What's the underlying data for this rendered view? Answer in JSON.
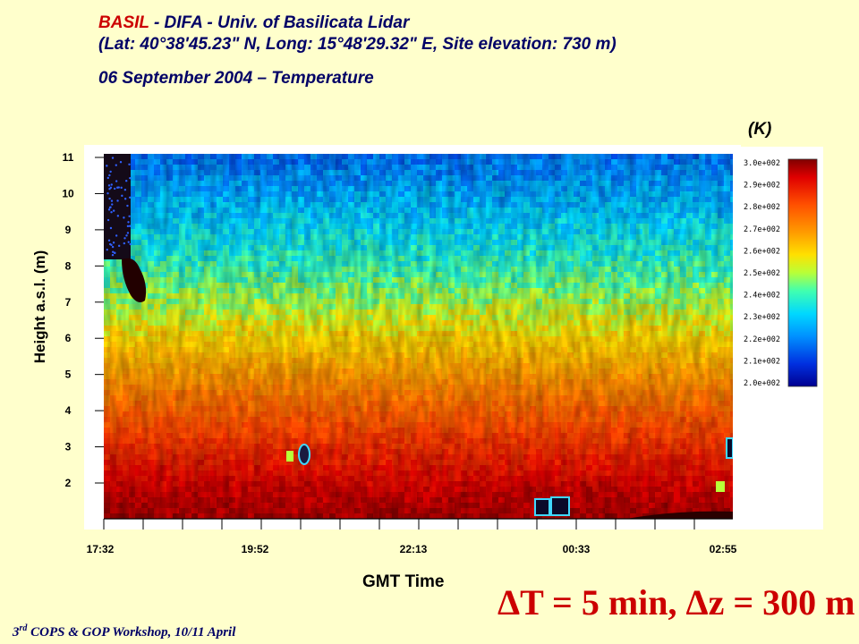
{
  "header": {
    "name_highlight": "BASIL",
    "name_rest": " - DIFA - Univ. of Basilicata Lidar",
    "coords": "(Lat: 40°38'45.23\" N, Long: 15°48'29.32\" E, Site elevation: 730 m)",
    "date": "06 September 2004 – Temperature"
  },
  "footer": {
    "ordinal": "3",
    "ordinal_sup": "rd",
    "text": " COPS & GOP Workshop, 10/11 April"
  },
  "resolution_note": "ΔT = 5 min, Δz = 300 m",
  "colors": {
    "background": "#FFFFCC",
    "title_blue": "#000066",
    "title_red": "#CC0000",
    "resolution_red": "#CC0000"
  },
  "chart_data": {
    "type": "heatmap",
    "title": "06 September 2004 – Temperature",
    "xlabel": "GMT Time",
    "ylabel": "Height a.s.l. (m)",
    "x_tick_labels": [
      "17:32",
      "19:52",
      "22:13",
      "00:33",
      "02:55"
    ],
    "y_tick_labels": [
      "2",
      "3",
      "4",
      "5",
      "6",
      "7",
      "8",
      "9",
      "10",
      "11"
    ],
    "ylim": [
      1,
      11
    ],
    "colorbar": {
      "unit": "(K)",
      "labels": [
        "3.0e+002",
        "2.9e+002",
        "2.8e+002",
        "2.7e+002",
        "2.6e+002",
        "2.5e+002",
        "2.4e+002",
        "2.3e+002",
        "2.2e+002",
        "2.1e+002",
        "2.0e+002"
      ],
      "range": [
        200,
        300
      ]
    },
    "temperature_profile": [
      {
        "height": 1.0,
        "temperature": 297
      },
      {
        "height": 2.0,
        "temperature": 292
      },
      {
        "height": 3.0,
        "temperature": 285
      },
      {
        "height": 4.0,
        "temperature": 277
      },
      {
        "height": 5.0,
        "temperature": 268
      },
      {
        "height": 6.0,
        "temperature": 259
      },
      {
        "height": 7.0,
        "temperature": 249
      },
      {
        "height": 8.0,
        "temperature": 240
      },
      {
        "height": 9.0,
        "temperature": 233
      },
      {
        "height": 10.0,
        "temperature": 226
      },
      {
        "height": 11.0,
        "temperature": 219
      }
    ]
  }
}
